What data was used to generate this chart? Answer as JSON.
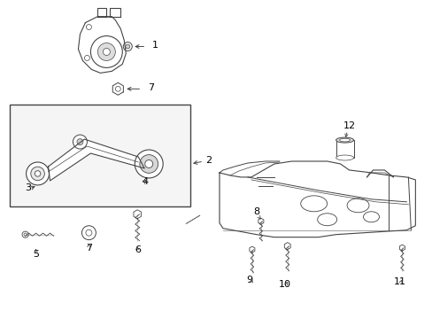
{
  "bg_color": "#ffffff",
  "line_color": "#444444",
  "label_color": "#000000",
  "figsize": [
    4.89,
    3.6
  ],
  "dpi": 100
}
